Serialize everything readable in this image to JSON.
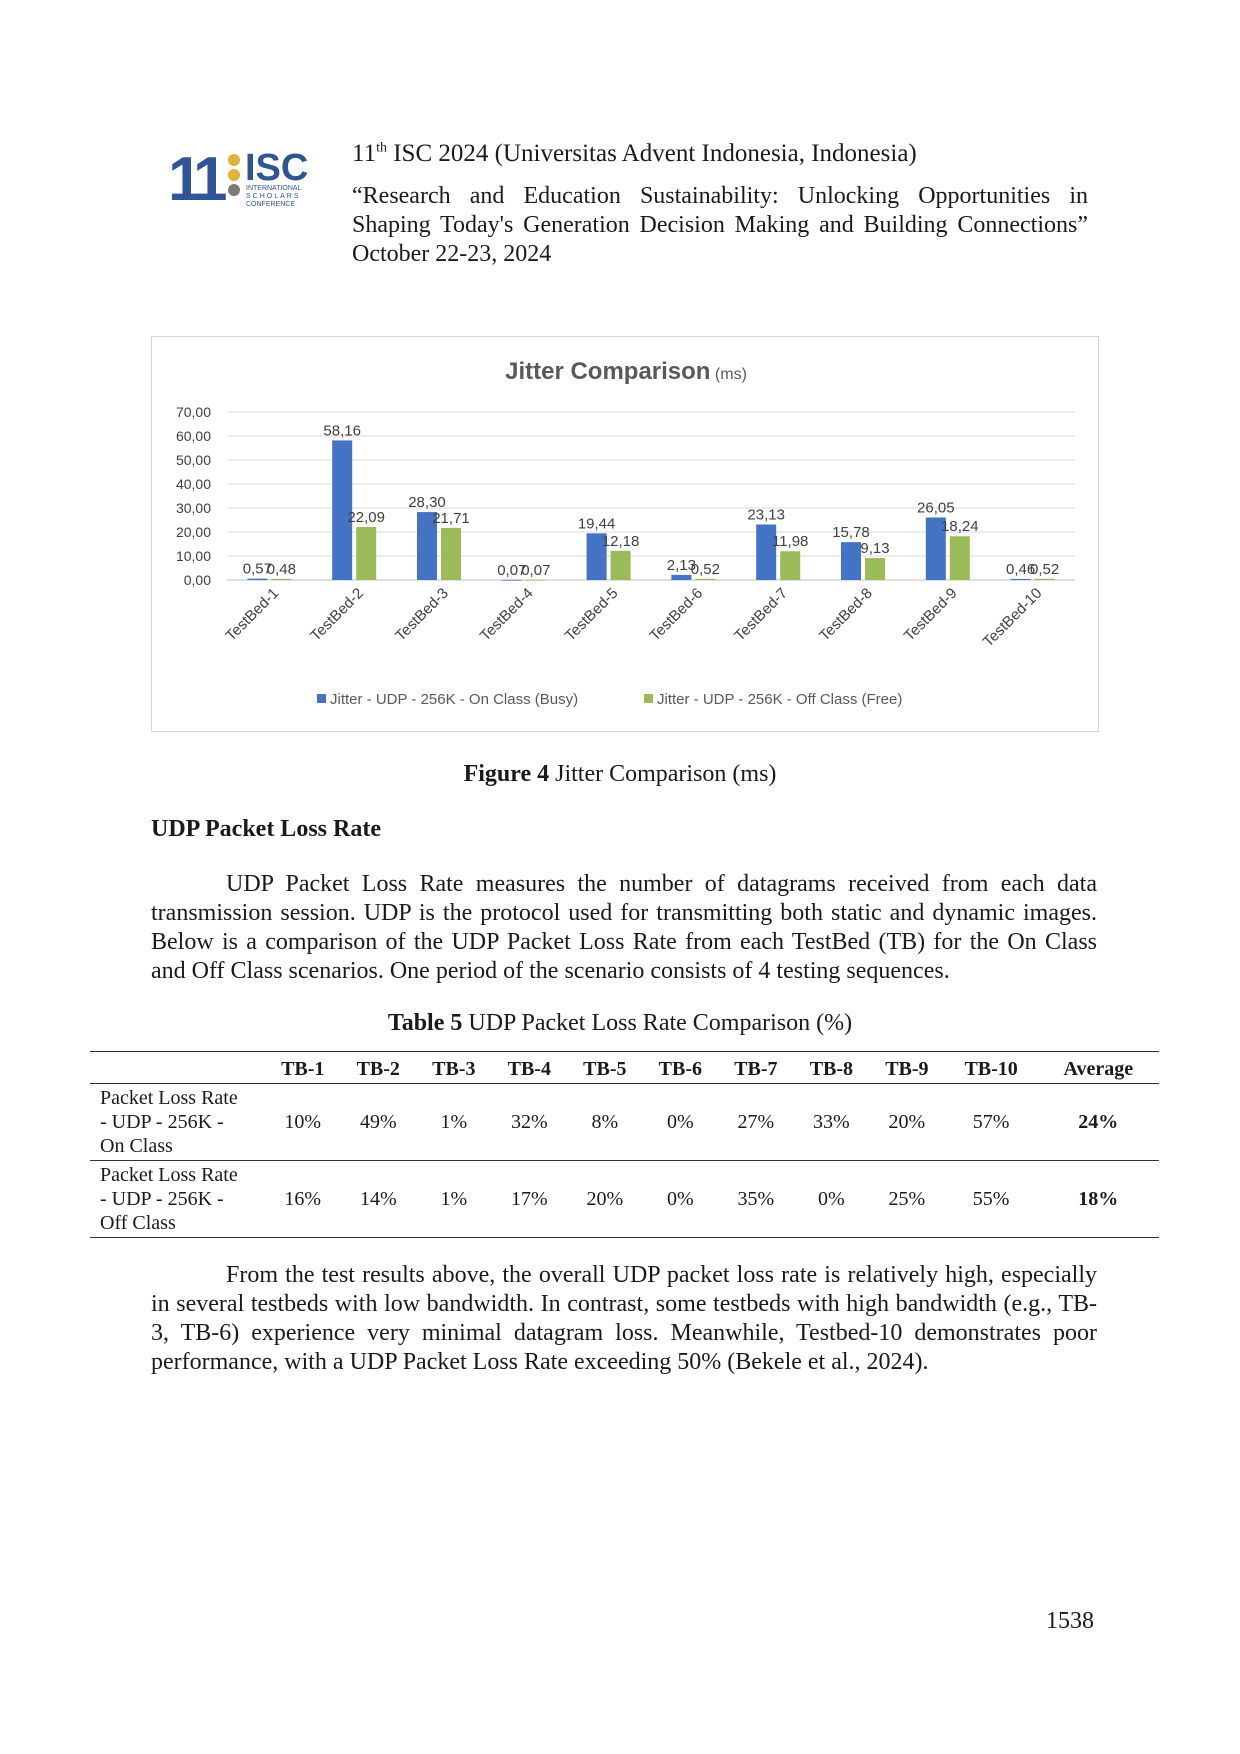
{
  "header": {
    "logo_number": "11",
    "logo_acronym": "ISC",
    "logo_subtitle": [
      "INTERNATIONAL",
      "SCHOLARS",
      "CONFERENCE"
    ],
    "conference_number": "11",
    "conference_suffix": "th",
    "conference_rest": " ISC 2024 (Universitas Advent Indonesia, Indonesia)",
    "theme": "“Research and Education Sustainability: Unlocking Opportunities in Shaping Today's Generation Decision Making and Building Connections” October 22-23, 2024"
  },
  "chart_data": {
    "type": "bar",
    "title": "Jitter Comparison",
    "title_unit": "(ms)",
    "categories": [
      "TestBed-1",
      "TestBed-2",
      "TestBed-3",
      "TestBed-4",
      "TestBed-5",
      "TestBed-6",
      "TestBed-7",
      "TestBed-8",
      "TestBed-9",
      "TestBed-10"
    ],
    "series": [
      {
        "name": "Jitter - UDP - 256K - On Class (Busy)",
        "color": "#4472C4",
        "values": [
          0.57,
          58.16,
          28.3,
          0.07,
          19.44,
          2.13,
          23.13,
          15.78,
          26.05,
          0.46
        ],
        "labels": [
          "0,57",
          "58,16",
          "28,30",
          "0,07",
          "19,44",
          "2,13",
          "23,13",
          "15,78",
          "26,05",
          "0,46"
        ]
      },
      {
        "name": "Jitter - UDP - 256K - Off Class (Free)",
        "color": "#9BBB59",
        "values": [
          0.48,
          22.09,
          21.71,
          0.07,
          12.18,
          0.52,
          11.98,
          9.13,
          18.24,
          0.52
        ],
        "labels": [
          "0,48",
          "22,09",
          "21,71",
          "0,07",
          "12,18",
          "0,52",
          "11,98",
          "9,13",
          "18,24",
          "0,52"
        ]
      }
    ],
    "yticks": [
      "0,00",
      "10,00",
      "20,00",
      "30,00",
      "40,00",
      "50,00",
      "60,00",
      "70,00"
    ],
    "ylim": [
      0,
      70
    ],
    "grid": true,
    "legend_position": "bottom"
  },
  "figure_caption": {
    "label": "Figure 4",
    "text": " Jitter Comparison (ms)"
  },
  "section_heading": "UDP Packet Loss Rate",
  "paragraph1": "UDP Packet Loss Rate measures the number of datagrams received from each data transmission session. UDP is the protocol used for transmitting both static and dynamic images. Below is a comparison of the UDP Packet Loss Rate from each TestBed (TB) for the On Class and Off Class scenarios. One period of the scenario consists of 4 testing sequences.",
  "table_caption": {
    "label": "Table 5",
    "text": " UDP Packet Loss Rate Comparison (%)"
  },
  "table": {
    "headers": [
      "",
      "TB-1",
      "TB-2",
      "TB-3",
      "TB-4",
      "TB-5",
      "TB-6",
      "TB-7",
      "TB-8",
      "TB-9",
      "TB-10",
      "Average"
    ],
    "rows": [
      {
        "label": [
          "Packet Loss Rate",
          "- UDP - 256K -",
          "On Class"
        ],
        "values": [
          "10%",
          "49%",
          "1%",
          "32%",
          "8%",
          "0%",
          "27%",
          "33%",
          "20%",
          "57%"
        ],
        "average": "24%"
      },
      {
        "label": [
          "Packet Loss Rate",
          "- UDP - 256K -",
          "Off Class"
        ],
        "values": [
          "16%",
          "14%",
          "1%",
          "17%",
          "20%",
          "0%",
          "35%",
          "0%",
          "25%",
          "55%"
        ],
        "average": "18%"
      }
    ]
  },
  "paragraph2": "From the test results above, the overall UDP packet loss rate is relatively high, especially in several testbeds with low bandwidth. In contrast, some testbeds with high bandwidth (e.g., TB-3, TB-6) experience very minimal datagram loss. Meanwhile, Testbed-10 demonstrates poor performance, with a UDP Packet Loss Rate exceeding 50% (Bekele et al., 2024).",
  "page_number": "1538"
}
